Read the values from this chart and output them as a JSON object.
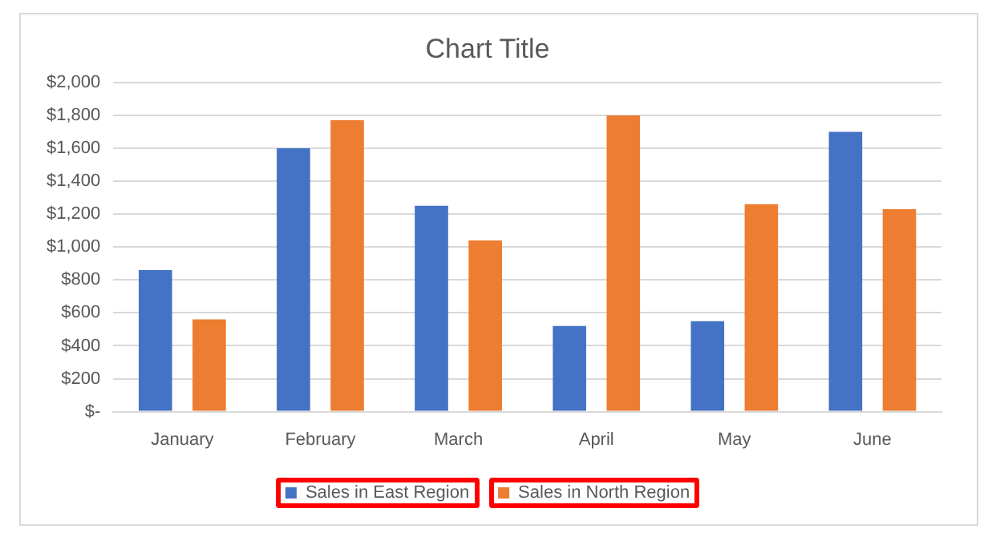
{
  "chart_data": {
    "type": "bar",
    "title": "Chart Title",
    "categories": [
      "January",
      "February",
      "March",
      "April",
      "May",
      "June"
    ],
    "series": [
      {
        "name": "Sales in East Region",
        "color": "#4472c4",
        "values": [
          860,
          1600,
          1250,
          520,
          550,
          1700
        ]
      },
      {
        "name": "Sales in North Region",
        "color": "#ed7d31",
        "values": [
          560,
          1770,
          1040,
          1800,
          1260,
          1230
        ]
      }
    ],
    "ylim": [
      0,
      2000
    ],
    "yticks": [
      {
        "value": 0,
        "label": "$-"
      },
      {
        "value": 200,
        "label": "$200"
      },
      {
        "value": 400,
        "label": "$400"
      },
      {
        "value": 600,
        "label": "$600"
      },
      {
        "value": 800,
        "label": "$800"
      },
      {
        "value": 1000,
        "label": "$1,000"
      },
      {
        "value": 1200,
        "label": "$1,200"
      },
      {
        "value": 1400,
        "label": "$1,400"
      },
      {
        "value": 1600,
        "label": "$1,600"
      },
      {
        "value": 1800,
        "label": "$1,800"
      },
      {
        "value": 2000,
        "label": "$2,000"
      }
    ],
    "grid": "y",
    "legend": "bottom"
  }
}
